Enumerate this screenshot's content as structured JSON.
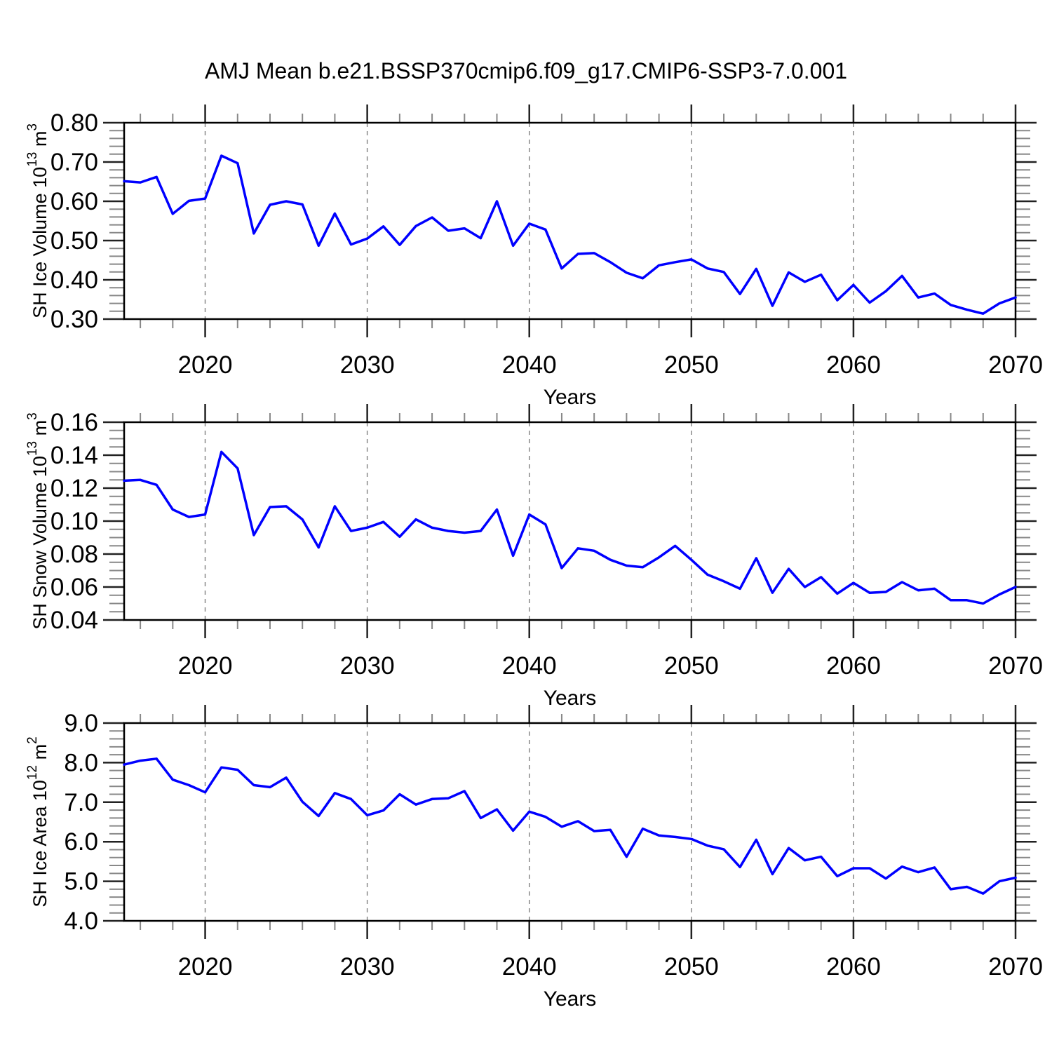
{
  "title": "AMJ Mean b.e21.BSSP370cmip6.f09_g17.CMIP6-SSP3-7.0.001",
  "colors": {
    "line": "#0000ff",
    "grid": "#888888",
    "frame": "#000000",
    "major_tick": "#222222",
    "minor_tick": "#888888",
    "text": "#000000"
  },
  "x_axis": {
    "label": "Years",
    "start": 2015,
    "end": 2070,
    "major_ticks": [
      2020,
      2030,
      2040,
      2050,
      2060,
      2070
    ],
    "major_tick_labels": [
      "2020",
      "2030",
      "2040",
      "2050",
      "2060",
      "2070"
    ],
    "minor_tick_step": 2,
    "years": [
      2015,
      2016,
      2017,
      2018,
      2019,
      2020,
      2021,
      2022,
      2023,
      2024,
      2025,
      2026,
      2027,
      2028,
      2029,
      2030,
      2031,
      2032,
      2033,
      2034,
      2035,
      2036,
      2037,
      2038,
      2039,
      2040,
      2041,
      2042,
      2043,
      2044,
      2045,
      2046,
      2047,
      2048,
      2049,
      2050,
      2051,
      2052,
      2053,
      2054,
      2055,
      2056,
      2057,
      2058,
      2059,
      2060,
      2061,
      2062,
      2063,
      2064,
      2065,
      2066,
      2067,
      2068,
      2069,
      2070
    ]
  },
  "chart_data": [
    {
      "type": "line",
      "name": "SH Ice Volume",
      "slug": "sh-ice-volume",
      "ylabel_prefix": "SH Ice Volume 10",
      "ylabel_sup1": "13",
      "ylabel_mid": " m",
      "ylabel_sup2": "3",
      "ylim": [
        0.3,
        0.8
      ],
      "yticks": [
        0.3,
        0.4,
        0.5,
        0.6,
        0.7,
        0.8
      ],
      "ytick_labels": [
        "0.30",
        "0.40",
        "0.50",
        "0.60",
        "0.70",
        "0.80"
      ],
      "yminor_step": 0.02,
      "grid": "vertical-dashed",
      "legend": "none",
      "values": [
        0.651,
        0.648,
        0.662,
        0.568,
        0.601,
        0.607,
        0.716,
        0.697,
        0.518,
        0.591,
        0.6,
        0.592,
        0.487,
        0.569,
        0.49,
        0.505,
        0.536,
        0.489,
        0.537,
        0.559,
        0.525,
        0.531,
        0.506,
        0.6,
        0.487,
        0.543,
        0.528,
        0.429,
        0.466,
        0.468,
        0.445,
        0.418,
        0.404,
        0.437,
        0.445,
        0.452,
        0.429,
        0.42,
        0.364,
        0.428,
        0.334,
        0.419,
        0.395,
        0.413,
        0.348,
        0.387,
        0.342,
        0.371,
        0.41,
        0.355,
        0.365,
        0.336,
        0.324,
        0.314,
        0.34,
        0.355
      ]
    },
    {
      "type": "line",
      "name": "SH Snow Volume",
      "slug": "sh-snow-volume",
      "ylabel_prefix": "SH Snow Volume 10",
      "ylabel_sup1": "13",
      "ylabel_mid": " m",
      "ylabel_sup2": "3",
      "ylim": [
        0.04,
        0.16
      ],
      "yticks": [
        0.04,
        0.06,
        0.08,
        0.1,
        0.12,
        0.14,
        0.16
      ],
      "ytick_labels": [
        "0.04",
        "0.06",
        "0.08",
        "0.10",
        "0.12",
        "0.14",
        "0.16"
      ],
      "yminor_step": 0.005,
      "grid": "vertical-dashed",
      "legend": "none",
      "values": [
        0.1245,
        0.125,
        0.122,
        0.107,
        0.1025,
        0.104,
        0.142,
        0.132,
        0.0915,
        0.1085,
        0.109,
        0.101,
        0.084,
        0.109,
        0.094,
        0.096,
        0.0995,
        0.0905,
        0.101,
        0.096,
        0.094,
        0.093,
        0.094,
        0.107,
        0.079,
        0.104,
        0.098,
        0.0715,
        0.0835,
        0.082,
        0.0765,
        0.073,
        0.072,
        0.078,
        0.085,
        0.0765,
        0.0675,
        0.0635,
        0.059,
        0.0775,
        0.0565,
        0.071,
        0.06,
        0.066,
        0.056,
        0.0625,
        0.0565,
        0.057,
        0.063,
        0.058,
        0.059,
        0.052,
        0.052,
        0.05,
        0.0555,
        0.06
      ]
    },
    {
      "type": "line",
      "name": "SH Ice Area",
      "slug": "sh-ice-area",
      "ylabel_prefix": "SH Ice Area 10",
      "ylabel_sup1": "12",
      "ylabel_mid": " m",
      "ylabel_sup2": "2",
      "ylim": [
        4.0,
        9.0
      ],
      "yticks": [
        4.0,
        5.0,
        6.0,
        7.0,
        8.0,
        9.0
      ],
      "ytick_labels": [
        "4.0",
        "5.0",
        "6.0",
        "7.0",
        "8.0",
        "9.0"
      ],
      "yminor_step": 0.2,
      "grid": "vertical-dashed",
      "legend": "none",
      "values": [
        7.95,
        8.05,
        8.1,
        7.57,
        7.43,
        7.25,
        7.88,
        7.82,
        7.43,
        7.38,
        7.62,
        7.01,
        6.65,
        7.23,
        7.08,
        6.67,
        6.79,
        7.2,
        6.94,
        7.08,
        7.1,
        7.28,
        6.6,
        6.82,
        6.28,
        6.76,
        6.63,
        6.38,
        6.52,
        6.27,
        6.3,
        5.62,
        6.33,
        6.16,
        6.12,
        6.07,
        5.9,
        5.81,
        5.36,
        6.05,
        5.18,
        5.84,
        5.53,
        5.62,
        5.13,
        5.33,
        5.33,
        5.07,
        5.37,
        5.23,
        5.35,
        4.8,
        4.86,
        4.69,
        5.0,
        5.09
      ]
    }
  ]
}
